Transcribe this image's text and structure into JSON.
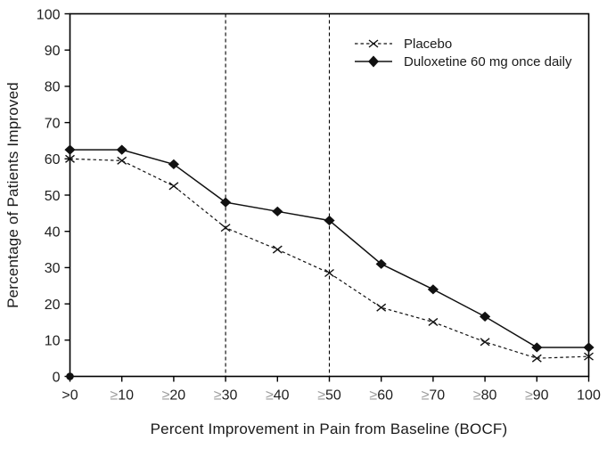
{
  "chart_data": {
    "type": "line",
    "categories": [
      ">0",
      "≥10",
      "≥20",
      "≥30",
      "≥40",
      "≥50",
      "≥60",
      "≥70",
      "≥80",
      "≥90",
      "100"
    ],
    "series": [
      {
        "name": "Placebo",
        "marker": "x",
        "line_style": "dashed",
        "values": [
          60,
          59.5,
          52.5,
          41,
          35,
          28.5,
          19,
          15,
          9.5,
          5,
          5.5
        ]
      },
      {
        "name": "Duloxetine 60 mg once daily",
        "marker": "diamond",
        "line_style": "solid",
        "values": [
          62.5,
          62.5,
          58.5,
          48,
          45.5,
          43,
          31,
          24,
          16.5,
          8,
          8
        ]
      }
    ],
    "title": "",
    "xlabel": "Percent Improvement in Pain from Baseline (BOCF)",
    "ylabel": "Percentage of Patients Improved",
    "ylim": [
      0,
      100
    ],
    "y_tick_step": 10,
    "x_reference_lines": [
      "≥30",
      "≥50"
    ],
    "origin_point": {
      "x": ">0",
      "y": 0,
      "shape": "dot"
    },
    "legend_position": "upper right inside plot",
    "grid": false,
    "colors": {
      "series": "#111111",
      "axis": "#000000",
      "tick_text": "#1f1f1f",
      "geq_prefix": "#9b9b9b",
      "background": "#ffffff"
    }
  }
}
